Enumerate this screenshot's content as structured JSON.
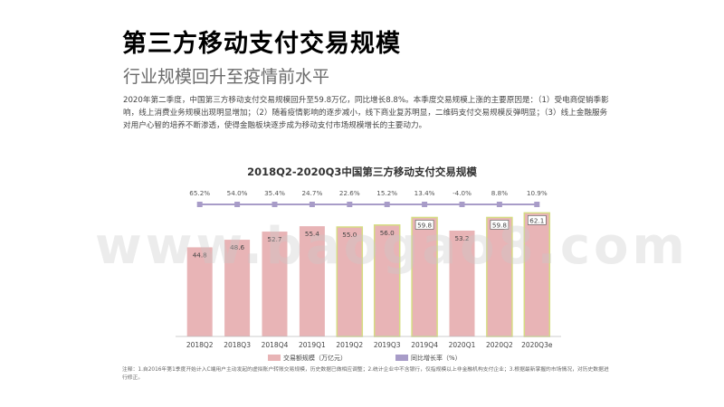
{
  "header": {
    "title": "第三方移动支付交易规模",
    "subtitle": "行业规模回升至疫情前水平"
  },
  "description": "2020年第二季度，中国第三方移动支付交易规模回升至59.8万亿，同比增长8.8%。本季度交易规模上涨的主要原因是：（1）受电商促销季影响，线上消费业务规模出现明显增加；（2）随着疫情影响的逐步减小，线下商业复苏明显，二维码支付交易规模反弹明显；（3）线上金融服务对用户心智的培养不断渗透，使得金融板块逐步成为移动支付市场规模增长的主要动力。",
  "watermark": "www.baogao8.com",
  "note": "注释：1.自2016年第1季度开始计入C端用户主动发起的虚拟账户转账交易规模，历史数据已做相应调整；2.统计企业中不含银行，仅指规模以上非金融机构支付企业；3.根据最新掌握的市场情况，对历史数据进行修正。",
  "colors": {
    "bar_fill": "#e8b4b6",
    "bar_highlight": "#d5dc82",
    "line": "#a89cc8",
    "marker": "#a89cc8"
  },
  "chart_data": {
    "type": "bar",
    "title": "2018Q2-2020Q3中国第三方移动支付交易规模",
    "categories": [
      "2018Q2",
      "2018Q3",
      "2018Q4",
      "2019Q1",
      "2019Q2",
      "2019Q3",
      "2019Q4",
      "2020Q1",
      "2020Q2",
      "2020Q3e"
    ],
    "series": [
      {
        "name": "交易额规模（万亿元）",
        "type": "bar",
        "values": [
          44.8,
          48.6,
          52.7,
          55.4,
          55.0,
          56.0,
          59.8,
          53.2,
          59.8,
          62.1
        ],
        "labels": [
          "44.8",
          "48.6",
          "52.7",
          "55.4",
          "55.0",
          "56.0",
          "59.8",
          "53.2",
          "59.8",
          "62.1"
        ],
        "highlighted": [
          false,
          false,
          false,
          false,
          true,
          true,
          true,
          false,
          true,
          true
        ],
        "boxed_labels": [
          false,
          false,
          false,
          false,
          false,
          false,
          true,
          false,
          true,
          true
        ]
      },
      {
        "name": "同比增长率（%）",
        "type": "line",
        "values": [
          65.2,
          54.0,
          35.4,
          24.7,
          22.6,
          15.2,
          13.4,
          -4.0,
          8.8,
          10.9
        ],
        "labels": [
          "65.2%",
          "54.0%",
          "35.4%",
          "24.7%",
          "22.6%",
          "15.2%",
          "13.4%",
          "-4.0%",
          "8.8%",
          "10.9%"
        ]
      }
    ],
    "ylim": [
      0,
      70
    ],
    "legend": "bottom-center"
  }
}
